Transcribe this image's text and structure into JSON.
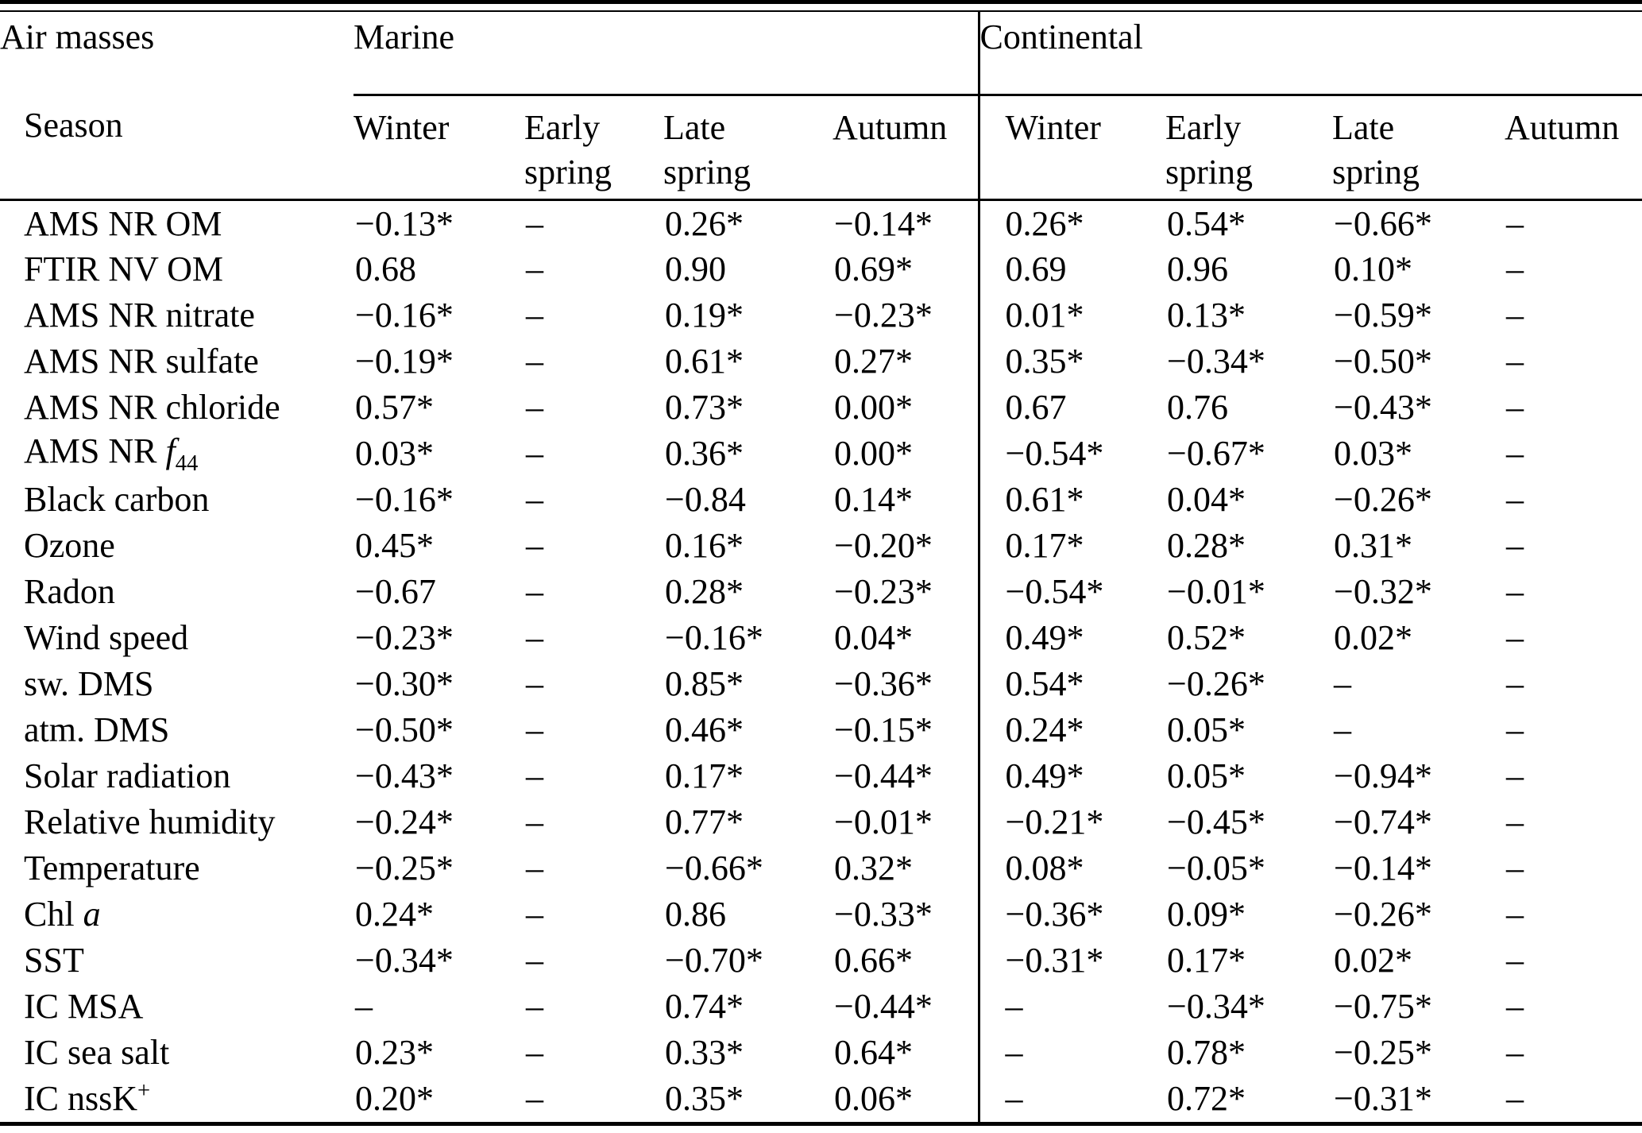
{
  "page": {
    "background": "#ffffff",
    "text_color": "#000000"
  },
  "table": {
    "corner": {
      "air_masses_label": "Air masses",
      "season_label": "Season"
    },
    "groups": [
      {
        "label": "Marine",
        "seasons": [
          "Winter",
          "Early spring",
          "Late spring",
          "Autumn"
        ]
      },
      {
        "label": "Continental",
        "seasons": [
          "Winter",
          "Early spring",
          "Late spring",
          "Autumn"
        ]
      }
    ],
    "rows": [
      {
        "label": "AMS NR OM",
        "values": [
          "−0.13*",
          "–",
          "0.26*",
          "−0.14*",
          "0.26*",
          "0.54*",
          "−0.66*",
          "–"
        ]
      },
      {
        "label": "FTIR NV OM",
        "values": [
          "0.68",
          "–",
          "0.90",
          "0.69*",
          "0.69",
          "0.96",
          "0.10*",
          "–"
        ]
      },
      {
        "label": "AMS NR nitrate",
        "values": [
          "−0.16*",
          "–",
          "0.19*",
          "−0.23*",
          "0.01*",
          "0.13*",
          "−0.59*",
          "–"
        ]
      },
      {
        "label": "AMS NR sulfate",
        "values": [
          "−0.19*",
          "–",
          "0.61*",
          "0.27*",
          "0.35*",
          "−0.34*",
          "−0.50*",
          "–"
        ]
      },
      {
        "label": "AMS NR chloride",
        "values": [
          "0.57*",
          "–",
          "0.73*",
          "0.00*",
          "0.67",
          "0.76",
          "−0.43*",
          "–"
        ]
      },
      {
        "label": "AMS NR <i>f</i><sub>44</sub>",
        "values": [
          "0.03*",
          "–",
          "0.36*",
          "0.00*",
          "−0.54*",
          "−0.67*",
          "0.03*",
          "–"
        ]
      },
      {
        "label": "Black carbon",
        "values": [
          "−0.16*",
          "–",
          "−0.84",
          "0.14*",
          "0.61*",
          "0.04*",
          "−0.26*",
          "–"
        ]
      },
      {
        "label": "Ozone",
        "values": [
          "0.45*",
          "–",
          "0.16*",
          "−0.20*",
          "0.17*",
          "0.28*",
          "0.31*",
          "–"
        ]
      },
      {
        "label": "Radon",
        "values": [
          "−0.67",
          "–",
          "0.28*",
          "−0.23*",
          "−0.54*",
          "−0.01*",
          "−0.32*",
          "–"
        ]
      },
      {
        "label": "Wind speed",
        "values": [
          "−0.23*",
          "–",
          "−0.16*",
          "0.04*",
          "0.49*",
          "0.52*",
          "0.02*",
          "–"
        ]
      },
      {
        "label": "sw. DMS",
        "values": [
          "−0.30*",
          "–",
          "0.85*",
          "−0.36*",
          "0.54*",
          "−0.26*",
          "–",
          "–"
        ]
      },
      {
        "label": "atm. DMS",
        "values": [
          "−0.50*",
          "–",
          "0.46*",
          "−0.15*",
          "0.24*",
          "0.05*",
          "–",
          "–"
        ]
      },
      {
        "label": "Solar radiation",
        "values": [
          "−0.43*",
          "–",
          "0.17*",
          "−0.44*",
          "0.49*",
          "0.05*",
          "−0.94*",
          "–"
        ]
      },
      {
        "label": "Relative humidity",
        "values": [
          "−0.24*",
          "–",
          "0.77*",
          "−0.01*",
          "−0.21*",
          "−0.45*",
          "−0.74*",
          "–"
        ]
      },
      {
        "label": "Temperature",
        "values": [
          "−0.25*",
          "–",
          "−0.66*",
          "0.32*",
          "0.08*",
          "−0.05*",
          "−0.14*",
          "–"
        ]
      },
      {
        "label": "Chl <i>a</i>",
        "values": [
          "0.24*",
          "–",
          "0.86",
          "−0.33*",
          "−0.36*",
          "0.09*",
          "−0.26*",
          "–"
        ]
      },
      {
        "label": "SST",
        "values": [
          "−0.34*",
          "–",
          "−0.70*",
          "0.66*",
          "−0.31*",
          "0.17*",
          "0.02*",
          "–"
        ]
      },
      {
        "label": "IC MSA",
        "values": [
          "–",
          "–",
          "0.74*",
          "−0.44*",
          "–",
          "−0.34*",
          "−0.75*",
          "–"
        ]
      },
      {
        "label": "IC sea salt",
        "values": [
          "0.23*",
          "–",
          "0.33*",
          "0.64*",
          "–",
          "0.78*",
          "−0.25*",
          "–"
        ]
      },
      {
        "label": "IC nssK<sup>+</sup>",
        "values": [
          "0.20*",
          "–",
          "0.35*",
          "0.06*",
          "–",
          "0.72*",
          "−0.31*",
          "–"
        ]
      }
    ]
  }
}
